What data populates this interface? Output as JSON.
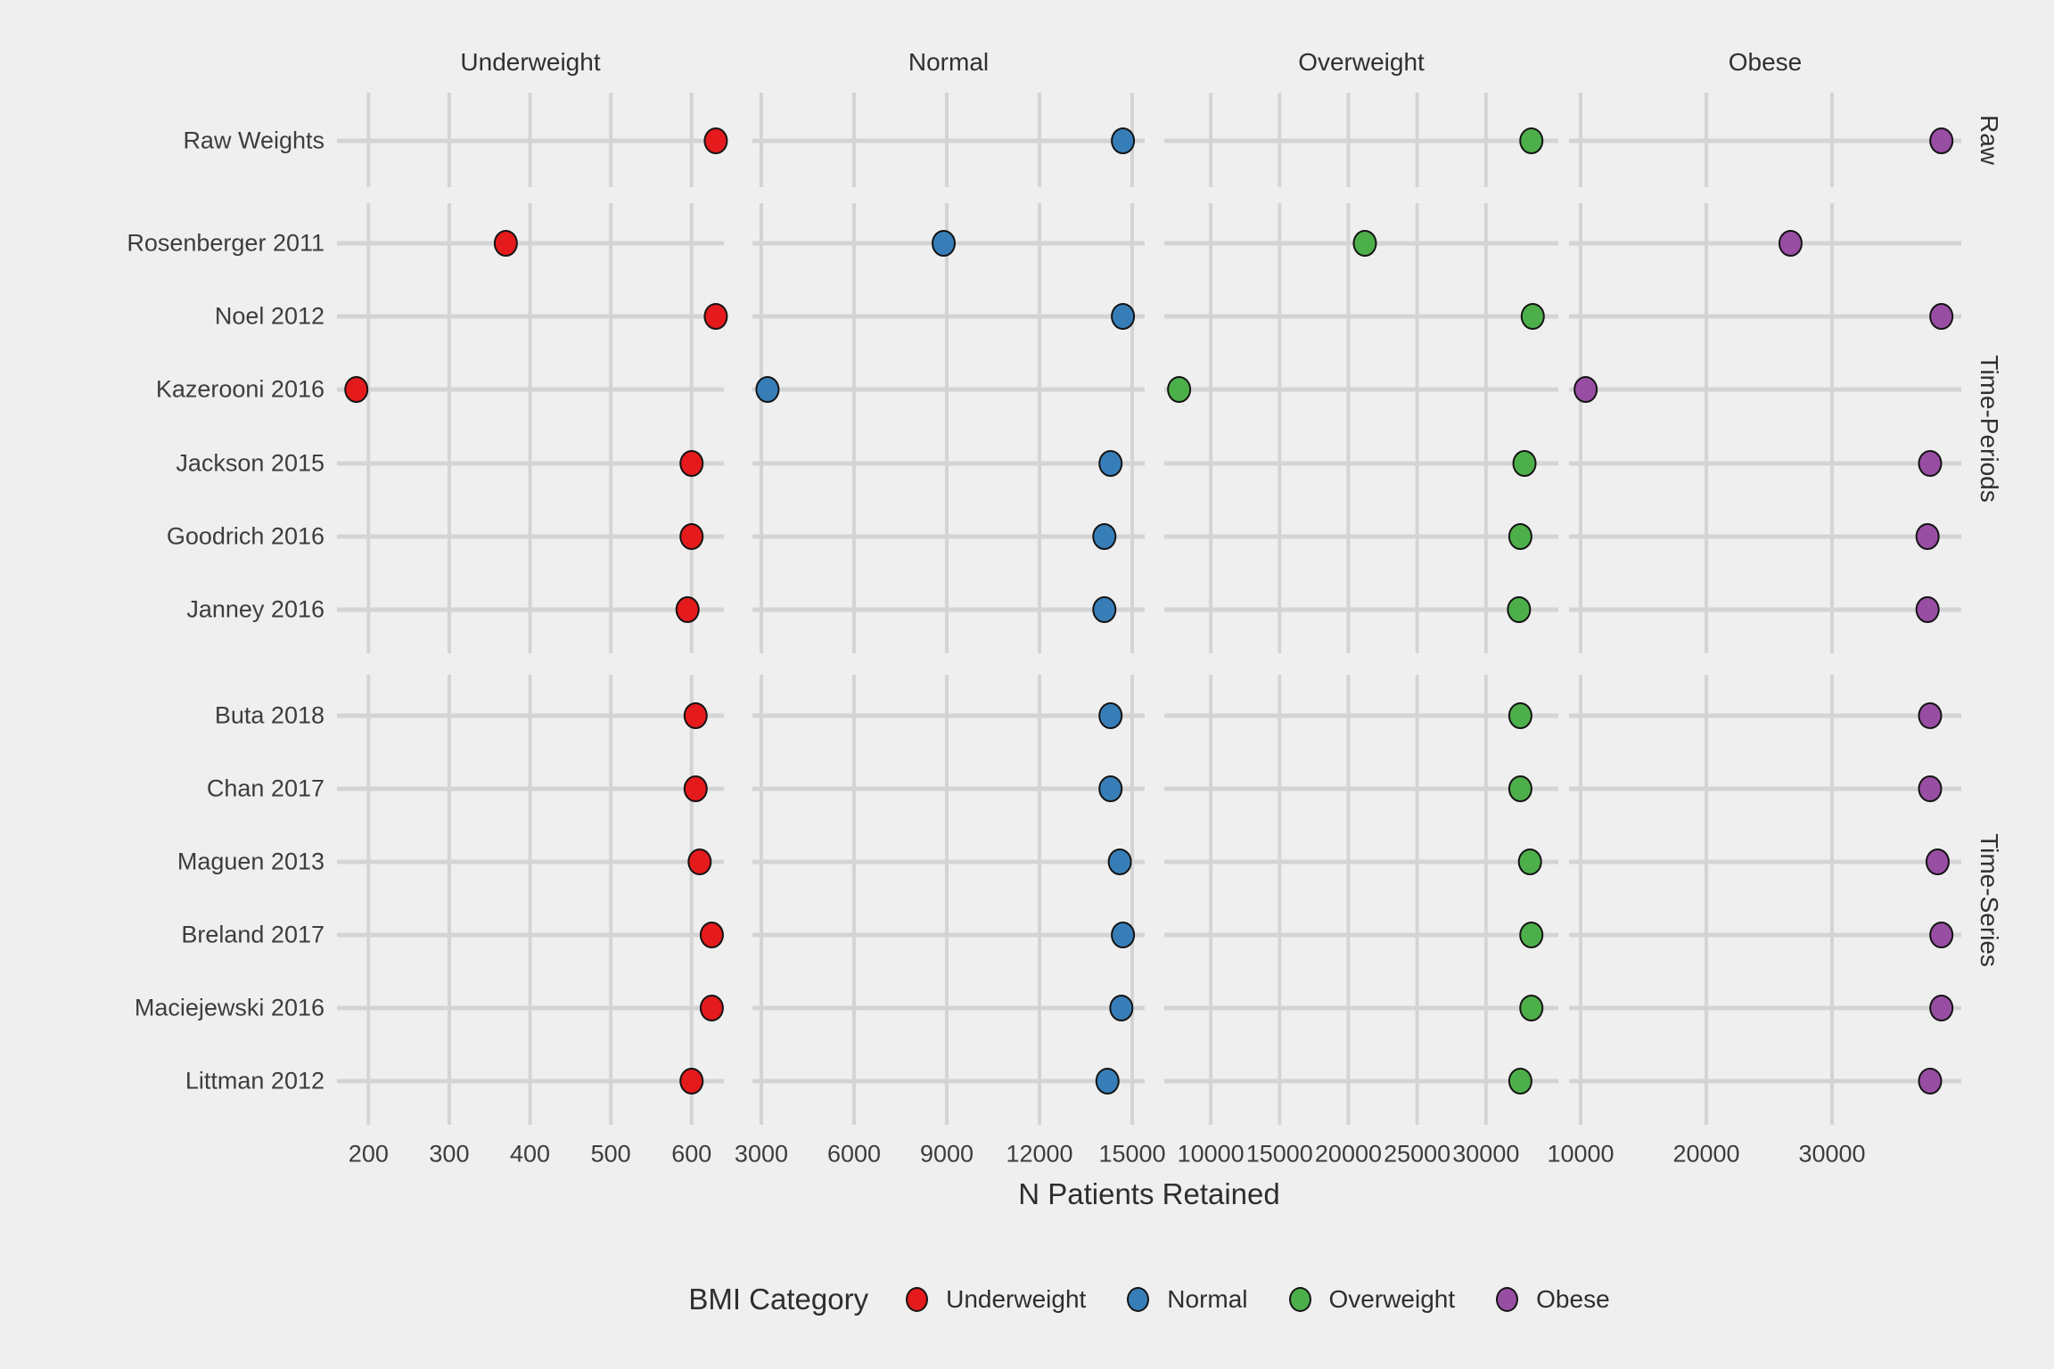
{
  "chart_data": {
    "type": "scatter",
    "title": "",
    "xlabel": "N Patients Retained",
    "legend_title": "BMI Category",
    "grid": true,
    "background_color": "#efefef",
    "grid_color": "#d4d4d4",
    "text_color": "#3d3d3d",
    "column_facets": [
      {
        "label": "Underweight",
        "color": "#e41a1c",
        "ticks": [
          200,
          300,
          400,
          500,
          600
        ],
        "xlim": [
          161,
          640
        ]
      },
      {
        "label": "Normal",
        "color": "#377eb8",
        "ticks": [
          3000,
          6000,
          9000,
          12000,
          15000
        ],
        "xlim": [
          2712,
          15404
        ]
      },
      {
        "label": "Overweight",
        "color": "#4daf4a",
        "ticks": [
          10000,
          15000,
          20000,
          25000,
          30000
        ],
        "xlim": [
          6623,
          35260
        ]
      },
      {
        "label": "Obese",
        "color": "#984ea3",
        "ticks": [
          10000,
          20000,
          30000
        ],
        "xlim": [
          9078,
          40283
        ]
      }
    ],
    "row_facets": [
      {
        "label": "Raw",
        "rows": [
          {
            "study": "Raw Weights",
            "values": [
              630,
              14700,
              33300,
              38700
            ]
          }
        ]
      },
      {
        "label": "Time-Periods",
        "rows": [
          {
            "study": "Rosenberger 2011",
            "values": [
              370,
              8900,
              21200,
              26700
            ]
          },
          {
            "study": "Noel 2012",
            "values": [
              630,
              14700,
              33400,
              38700
            ]
          },
          {
            "study": "Kazerooni 2016",
            "values": [
              185,
              3200,
              7700,
              10400
            ]
          },
          {
            "study": "Jackson 2015",
            "values": [
              600,
              14300,
              32800,
              37800
            ]
          },
          {
            "study": "Goodrich 2016",
            "values": [
              600,
              14100,
              32500,
              37600
            ]
          },
          {
            "study": "Janney 2016",
            "values": [
              595,
              14100,
              32400,
              37600
            ]
          }
        ]
      },
      {
        "label": "Time-Series",
        "rows": [
          {
            "study": "Buta 2018",
            "values": [
              605,
              14300,
              32500,
              37800
            ]
          },
          {
            "study": "Chan 2017",
            "values": [
              605,
              14300,
              32500,
              37800
            ]
          },
          {
            "study": "Maguen 2013",
            "values": [
              610,
              14600,
              33200,
              38400
            ]
          },
          {
            "study": "Breland 2017",
            "values": [
              625,
              14700,
              33300,
              38700
            ]
          },
          {
            "study": "Maciejewski 2016",
            "values": [
              625,
              14650,
              33300,
              38700
            ]
          },
          {
            "study": "Littman 2012",
            "values": [
              600,
              14200,
              32500,
              37800
            ]
          }
        ]
      }
    ],
    "legend_entries": [
      {
        "label": "Underweight",
        "color": "#e41a1c"
      },
      {
        "label": "Normal",
        "color": "#377eb8"
      },
      {
        "label": "Overweight",
        "color": "#4daf4a"
      },
      {
        "label": "Obese",
        "color": "#984ea3"
      }
    ]
  }
}
